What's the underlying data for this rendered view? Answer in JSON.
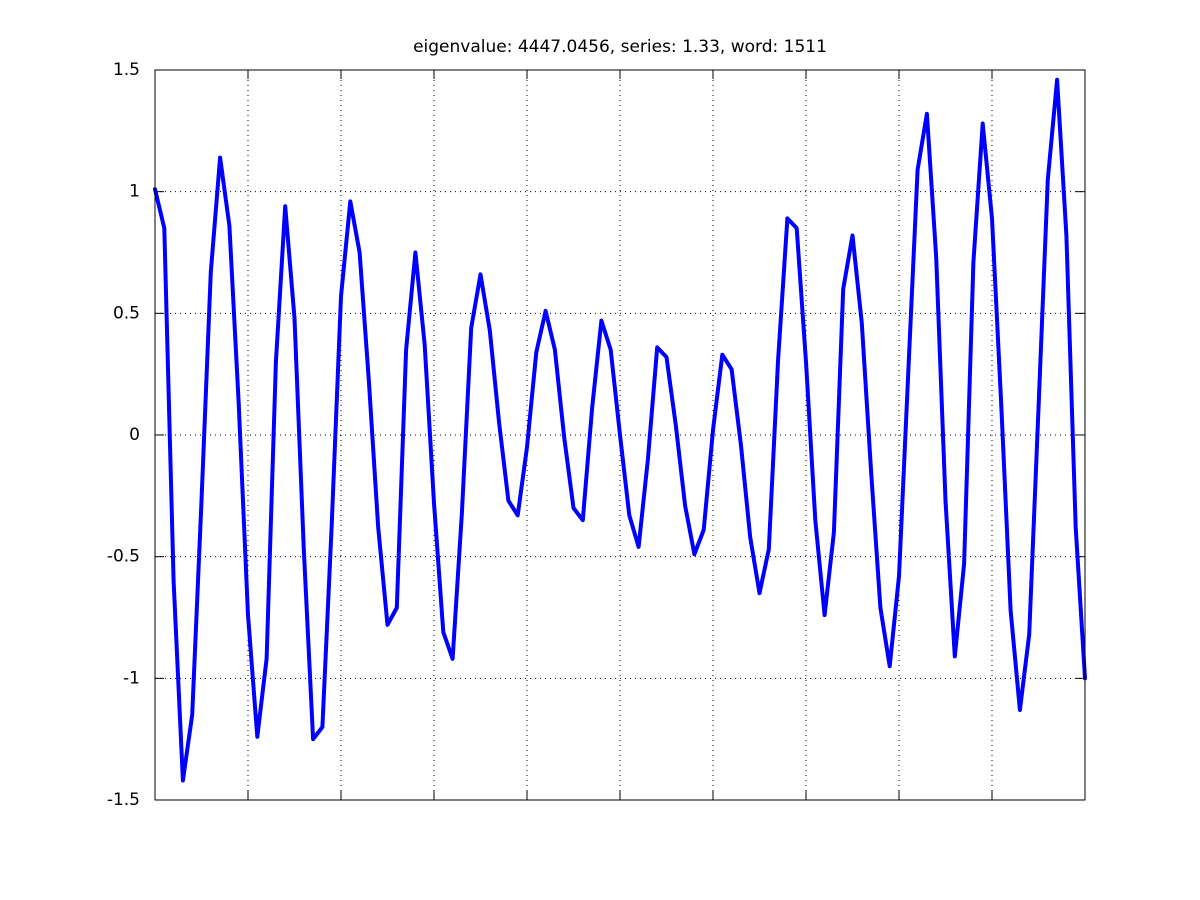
{
  "chart_data": {
    "type": "line",
    "title": "eigenvalue: 4447.0456, series: 1.33, word: 1511",
    "ylim": [
      -1.5,
      1.5
    ],
    "yticks": [
      -1.5,
      -1,
      -0.5,
      0,
      0.5,
      1,
      1.5
    ],
    "grid": true,
    "color": "#0000ff",
    "values": [
      1.01,
      0.85,
      -0.6,
      -1.42,
      -1.15,
      -0.27,
      0.67,
      1.14,
      0.86,
      0.13,
      -0.74,
      -1.24,
      -0.92,
      0.3,
      0.94,
      0.48,
      -0.47,
      -1.25,
      -1.2,
      -0.37,
      0.57,
      0.96,
      0.75,
      0.22,
      -0.38,
      -0.78,
      -0.71,
      0.35,
      0.75,
      0.37,
      -0.28,
      -0.81,
      -0.92,
      -0.32,
      0.44,
      0.66,
      0.43,
      0.05,
      -0.27,
      -0.33,
      -0.05,
      0.34,
      0.51,
      0.35,
      -0.01,
      -0.3,
      -0.35,
      0.11,
      0.47,
      0.35,
      0.0,
      -0.33,
      -0.46,
      -0.1,
      0.36,
      0.32,
      0.04,
      -0.29,
      -0.49,
      -0.39,
      0.02,
      0.33,
      0.27,
      -0.04,
      -0.42,
      -0.65,
      -0.47,
      0.31,
      0.89,
      0.85,
      0.3,
      -0.35,
      -0.74,
      -0.4,
      0.6,
      0.82,
      0.46,
      -0.15,
      -0.71,
      -0.95,
      -0.58,
      0.26,
      1.09,
      1.32,
      0.73,
      -0.27,
      -0.91,
      -0.53,
      0.71,
      1.28,
      0.89,
      0.12,
      -0.72,
      -1.13,
      -0.82,
      0.11,
      1.05,
      1.46,
      0.82,
      -0.38,
      -1.0
    ]
  }
}
